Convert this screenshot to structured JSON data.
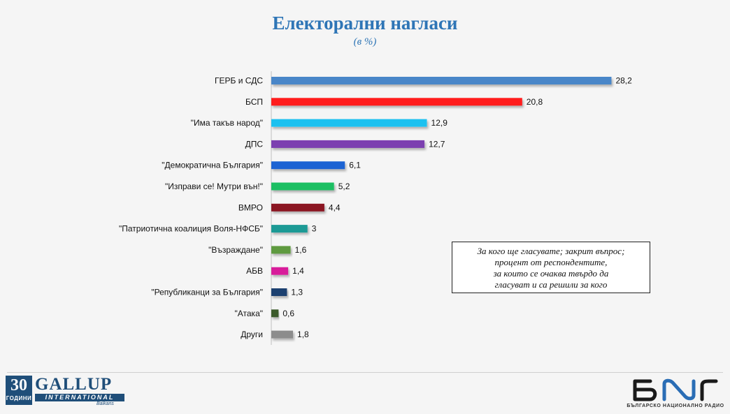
{
  "header": {
    "title": "Електорални нагласи",
    "subtitle": "(в %)"
  },
  "chart_data": {
    "type": "bar",
    "orientation": "horizontal",
    "categories": [
      "ГЕРБ и СДС",
      "БСП",
      "\"Има такъв народ\"",
      "ДПС",
      "\"Демократична България\"",
      "\"Изправи се! Мутри вън!\"",
      "ВМРО",
      "\"Патриотична коалиция Воля-НФСБ\"",
      "\"Възраждане\"",
      "АБВ",
      "\"Републиканци за България\"",
      "\"Атака\"",
      "Други"
    ],
    "values": [
      28.2,
      20.8,
      12.9,
      12.7,
      6.1,
      5.2,
      4.4,
      3,
      1.6,
      1.4,
      1.3,
      0.6,
      1.8
    ],
    "value_labels": [
      "28,2",
      "20,8",
      "12,9",
      "12,7",
      "6,1",
      "5,2",
      "4,4",
      "3",
      "1,6",
      "1,4",
      "1,3",
      "0,6",
      "1,8"
    ],
    "colors": [
      "#4a86c8",
      "#ff1a1a",
      "#1ec1f0",
      "#7b3fb0",
      "#1f63d3",
      "#1fbf63",
      "#8b1420",
      "#1f9a95",
      "#5f9a3f",
      "#d81d9a",
      "#1f3f70",
      "#3a5a2a",
      "#8c8c8c"
    ],
    "title": "Електорални нагласи",
    "subtitle": "(в %)",
    "xlim": [
      0,
      30
    ],
    "grid": false,
    "legend": "none"
  },
  "note": {
    "lines": [
      "За кого ще гласувате; закрит въпрос;",
      "процент от респондентите,",
      "за които се очаква твърдо да",
      "гласуват и са решили за кого"
    ]
  },
  "footer": {
    "gallup_years_number": "30",
    "gallup_years_word": "ГОДИНИ",
    "gallup_name": "GALLUP",
    "gallup_international": "INTERNATIONAL",
    "gallup_region": "Balkans",
    "bnr_logo_text": "БНР",
    "bnr_caption": "БЪЛГАРСКО НАЦИОНАЛНО РАДИО"
  }
}
